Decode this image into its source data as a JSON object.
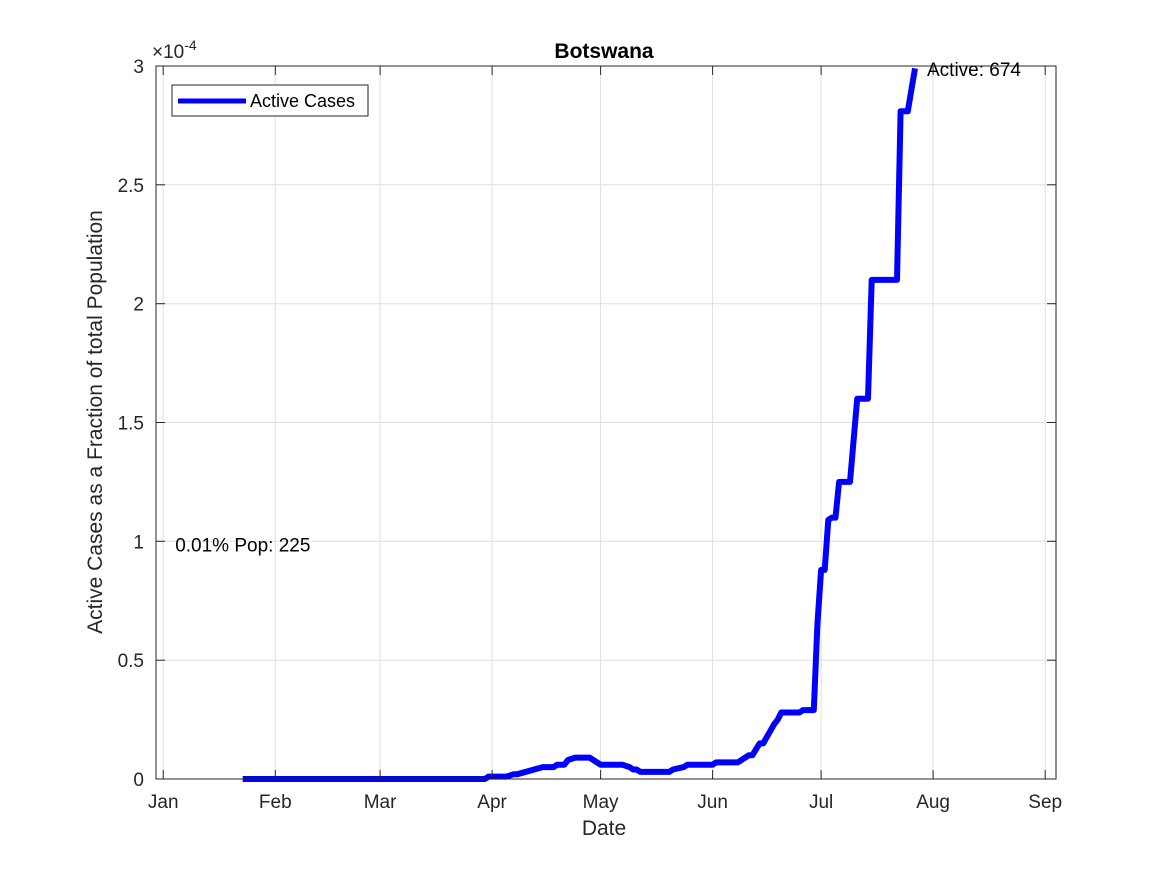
{
  "chart_data": {
    "type": "line",
    "title": "Botswana",
    "xlabel": "Date",
    "ylabel": "Active Cases as a Fraction of total Population",
    "y_exponent_label": "×10",
    "y_exponent_power": "-4",
    "x_tick_labels": [
      "Jan",
      "Feb",
      "Mar",
      "Apr",
      "May",
      "Jun",
      "Jul",
      "Aug",
      "Sep"
    ],
    "x_tick_dates": [
      "2020-01-01",
      "2020-02-01",
      "2020-03-01",
      "2020-04-01",
      "2020-05-01",
      "2020-06-01",
      "2020-07-01",
      "2020-08-01",
      "2020-09-01"
    ],
    "y_tick_labels": [
      "0",
      "0.5",
      "1",
      "1.5",
      "2",
      "2.5",
      "3"
    ],
    "y_tick_values": [
      0,
      0.5,
      1,
      1.5,
      2,
      2.5,
      3
    ],
    "y_scale_factor": "1e-4",
    "xlim": [
      "2019-12-30",
      "2020-09-04"
    ],
    "ylim": [
      0,
      3
    ],
    "grid": true,
    "legend": {
      "position": "top-left",
      "entries": [
        "Active Cases"
      ]
    },
    "series": [
      {
        "name": "Active Cases",
        "color": "#0000ff",
        "x": [
          "2020-01-23",
          "2020-03-30",
          "2020-03-31",
          "2020-04-05",
          "2020-04-07",
          "2020-04-08",
          "2020-04-15",
          "2020-04-16",
          "2020-04-18",
          "2020-04-19",
          "2020-04-21",
          "2020-04-22",
          "2020-04-24",
          "2020-04-28",
          "2020-04-29",
          "2020-05-01",
          "2020-05-07",
          "2020-05-09",
          "2020-05-10",
          "2020-05-11",
          "2020-05-12",
          "2020-05-16",
          "2020-05-17",
          "2020-05-20",
          "2020-05-21",
          "2020-05-24",
          "2020-05-25",
          "2020-06-01",
          "2020-06-02",
          "2020-06-08",
          "2020-06-09",
          "2020-06-11",
          "2020-06-12",
          "2020-06-14",
          "2020-06-15",
          "2020-06-18",
          "2020-06-19",
          "2020-06-20",
          "2020-06-21",
          "2020-06-25",
          "2020-06-26",
          "2020-06-29",
          "2020-06-30",
          "2020-07-01",
          "2020-07-02",
          "2020-07-03",
          "2020-07-04",
          "2020-07-05",
          "2020-07-06",
          "2020-07-08",
          "2020-07-09",
          "2020-07-11",
          "2020-07-12",
          "2020-07-14",
          "2020-07-15",
          "2020-07-17",
          "2020-07-20",
          "2020-07-22",
          "2020-07-23",
          "2020-07-24",
          "2020-07-25",
          "2020-07-26",
          "2020-07-27"
        ],
        "y": [
          0,
          0,
          0.01,
          0.01,
          0.02,
          0.02,
          0.05,
          0.05,
          0.05,
          0.06,
          0.06,
          0.08,
          0.09,
          0.09,
          0.08,
          0.06,
          0.06,
          0.05,
          0.04,
          0.04,
          0.03,
          0.03,
          0.03,
          0.03,
          0.04,
          0.05,
          0.06,
          0.06,
          0.07,
          0.07,
          0.08,
          0.1,
          0.1,
          0.15,
          0.15,
          0.23,
          0.25,
          0.28,
          0.28,
          0.28,
          0.29,
          0.29,
          0.65,
          0.88,
          0.88,
          1.09,
          1.1,
          1.1,
          1.25,
          1.25,
          1.25,
          1.6,
          1.6,
          1.6,
          2.1,
          2.1,
          2.1,
          2.1,
          2.81,
          2.81,
          2.81,
          2.9,
          2.99
        ]
      }
    ],
    "annotations": [
      {
        "text": "Active: 674",
        "x": "2020-07-27",
        "y": 3.0
      },
      {
        "text": "0.01% Pop: 225",
        "x": "2020-01-01",
        "y": 1.0
      }
    ]
  }
}
